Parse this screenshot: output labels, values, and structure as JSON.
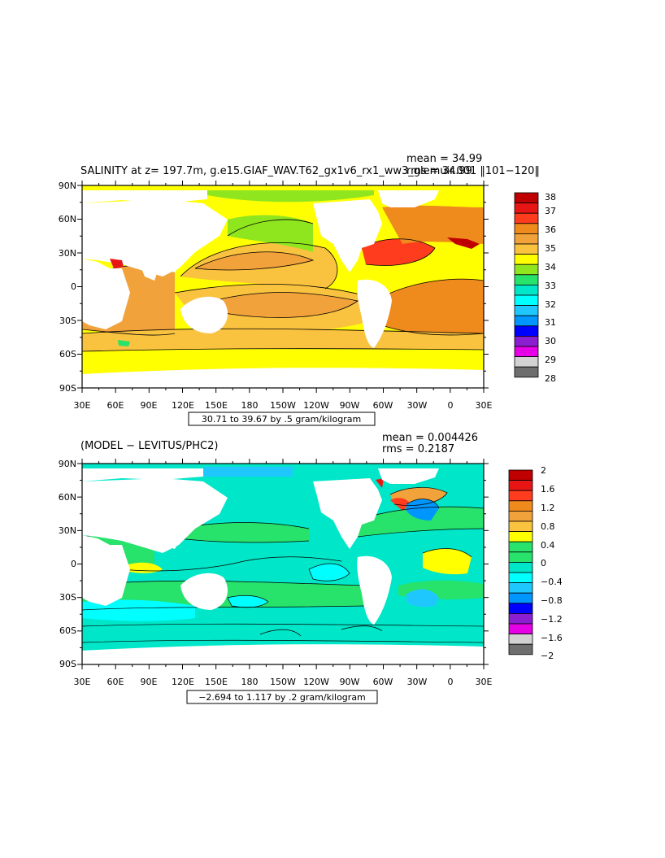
{
  "panels": [
    {
      "title": "SALINITY at z= 197.7m, g.e15.GIAF_WAV.T62_gx1v6_rx1_ww3_glemuir.001  ‖101−120‖",
      "mean": "mean = 34.99",
      "rms": "rms = 34.99",
      "contour_info": "30.71 to 39.67 by .5 gram/kilogram",
      "lat_labels": [
        "90N",
        "60N",
        "30N",
        "0",
        "30S",
        "60S",
        "90S"
      ],
      "lon_labels": [
        "30E",
        "60E",
        "90E",
        "120E",
        "150E",
        "180",
        "150W",
        "120W",
        "90W",
        "60W",
        "30W",
        "0",
        "30E"
      ],
      "colorbar": {
        "colors": [
          "#c00000",
          "#e81515",
          "#ff3c1e",
          "#ef8a1c",
          "#f2a23a",
          "#f9c23f",
          "#ffff00",
          "#8fe61e",
          "#27e26b",
          "#00e6c8",
          "#00ffff",
          "#1ec8ff",
          "#0096ff",
          "#0000ff",
          "#8c1ed2",
          "#e600e6",
          "#d2d2d2",
          "#6e6e6e"
        ],
        "labels": [
          "38",
          "37",
          "36",
          "35",
          "34",
          "33",
          "32",
          "31",
          "30",
          "29",
          "28"
        ]
      }
    },
    {
      "title": "(MODEL − LEVITUS/PHC2)",
      "mean": "mean = 0.004426",
      "rms": "rms = 0.2187",
      "contour_info": "−2.694 to 1.117 by .2 gram/kilogram",
      "lat_labels": [
        "90N",
        "60N",
        "30N",
        "0",
        "30S",
        "60S",
        "90S"
      ],
      "lon_labels": [
        "30E",
        "60E",
        "90E",
        "120E",
        "150E",
        "180",
        "150W",
        "120W",
        "90W",
        "60W",
        "30W",
        "0",
        "30E"
      ],
      "colorbar": {
        "colors": [
          "#c00000",
          "#e81515",
          "#ff3c1e",
          "#ef8a1c",
          "#f2a23a",
          "#f9c23f",
          "#ffff00",
          "#27e26b",
          "#27e26b",
          "#00e6c8",
          "#00ffff",
          "#1ec8ff",
          "#0096ff",
          "#0000ff",
          "#8c1ed2",
          "#e600e6",
          "#d2d2d2",
          "#6e6e6e"
        ],
        "labels": [
          "2",
          "1.6",
          "1.2",
          "0.8",
          "0.4",
          "0",
          "−0.4",
          "−0.8",
          "−1.2",
          "−1.6",
          "−2"
        ]
      }
    }
  ]
}
